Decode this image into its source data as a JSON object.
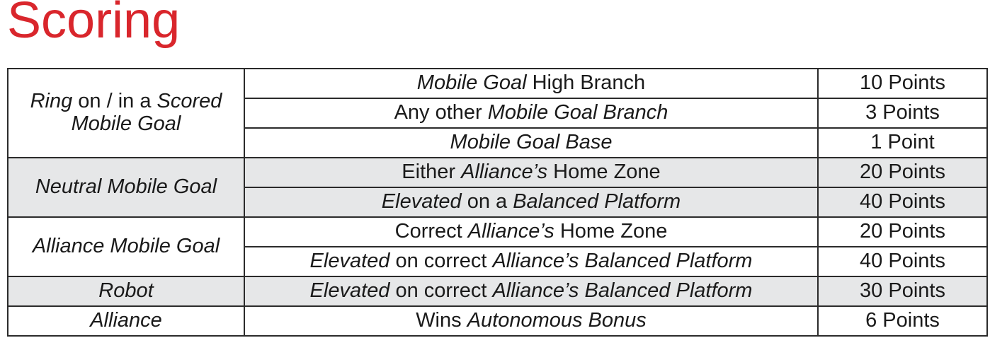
{
  "title": "Scoring",
  "rows": [
    {
      "category": {
        "parts": [
          [
            "Ring",
            true
          ],
          [
            " on / in a ",
            false
          ],
          [
            "Scored",
            true
          ]
        ],
        "line2": [
          [
            "Mobile Goal",
            true
          ]
        ]
      },
      "items": [
        {
          "condition": [
            [
              "Mobile Goal",
              true
            ],
            [
              " High Branch",
              false
            ]
          ],
          "points": "10 Points"
        },
        {
          "condition": [
            [
              "Any other ",
              false
            ],
            [
              "Mobile Goal Branch",
              true
            ]
          ],
          "points": "3 Points"
        },
        {
          "condition": [
            [
              "Mobile Goal Base",
              true
            ]
          ],
          "points": "1 Point"
        }
      ],
      "shaded": false
    },
    {
      "category": {
        "parts": [
          [
            "Neutral Mobile Goal",
            true
          ]
        ]
      },
      "items": [
        {
          "condition": [
            [
              "Either ",
              false
            ],
            [
              "Alliance’s",
              true
            ],
            [
              " Home Zone",
              false
            ]
          ],
          "points": "20 Points"
        },
        {
          "condition": [
            [
              "Elevated",
              true
            ],
            [
              " on a ",
              false
            ],
            [
              "Balanced Platform",
              true
            ]
          ],
          "points": "40 Points"
        }
      ],
      "shaded": true
    },
    {
      "category": {
        "parts": [
          [
            "Alliance Mobile Goal",
            true
          ]
        ]
      },
      "items": [
        {
          "condition": [
            [
              "Correct ",
              false
            ],
            [
              "Alliance’s",
              true
            ],
            [
              " Home Zone",
              false
            ]
          ],
          "points": "20 Points"
        },
        {
          "condition": [
            [
              "Elevated",
              true
            ],
            [
              " on correct ",
              false
            ],
            [
              "Alliance’s Balanced Platform",
              true
            ]
          ],
          "points": "40 Points"
        }
      ],
      "shaded": false
    },
    {
      "category": {
        "parts": [
          [
            "Robot",
            true
          ]
        ]
      },
      "items": [
        {
          "condition": [
            [
              "Elevated",
              true
            ],
            [
              " on correct ",
              false
            ],
            [
              "Alliance’s Balanced Platform",
              true
            ]
          ],
          "points": "30 Points"
        }
      ],
      "shaded": true
    },
    {
      "category": {
        "parts": [
          [
            "Alliance",
            true
          ]
        ]
      },
      "items": [
        {
          "condition": [
            [
              "Wins ",
              false
            ],
            [
              "Autonomous Bonus",
              true
            ]
          ],
          "points": "6 Points"
        }
      ],
      "shaded": false
    }
  ]
}
